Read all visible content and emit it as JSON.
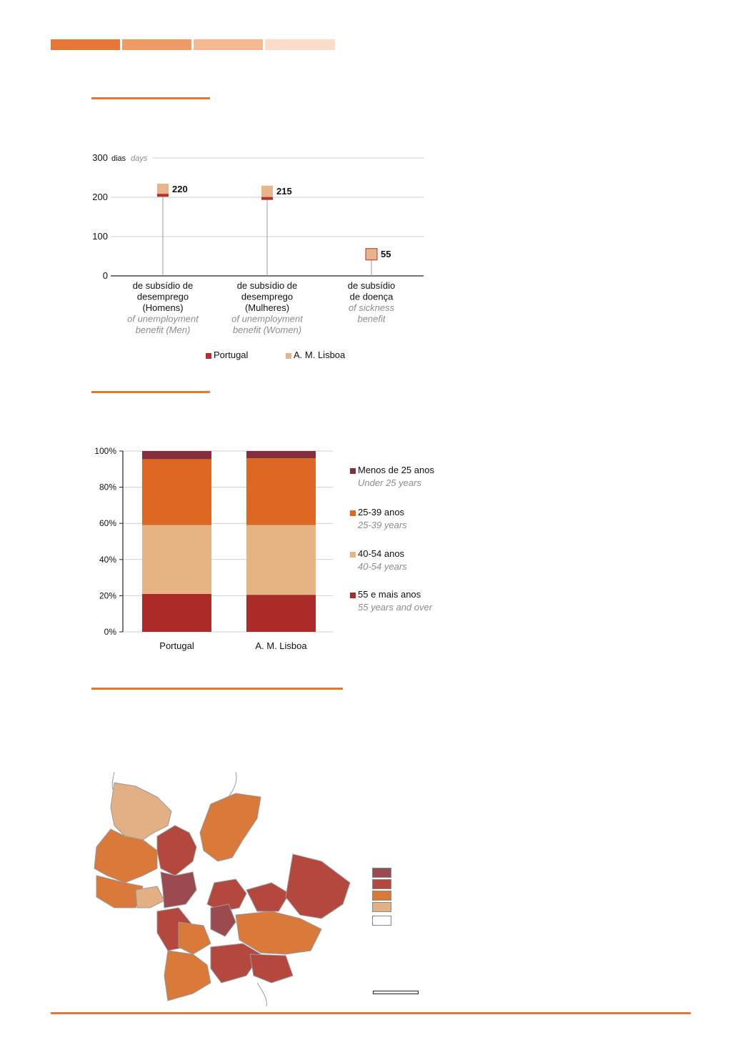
{
  "header_bar": {
    "colors": [
      "#e87636",
      "#f09a65",
      "#f5b892",
      "#fbdcc9"
    ]
  },
  "chart_data": [
    {
      "type": "scatter",
      "ytick_labels": [
        "300",
        "200",
        "100",
        "0"
      ],
      "yunit": "dias",
      "yunit_en": "days",
      "ylim": [
        0,
        300
      ],
      "categories": [
        {
          "pt": [
            "de subsídio de",
            "desemprego",
            "(Homens)"
          ],
          "en": [
            "of unemployment",
            "benefit (Men)"
          ]
        },
        {
          "pt": [
            "de subsídio de",
            "desemprego",
            "(Mulheres)"
          ],
          "en": [
            "of unemployment",
            "benefit (Women)"
          ]
        },
        {
          "pt": [
            "de subsídio",
            "de doença"
          ],
          "en": [
            "of sickness",
            "benefit"
          ]
        }
      ],
      "series": [
        {
          "name": "Portugal",
          "color": "#b5302a",
          "values": [
            205,
            197,
            54
          ]
        },
        {
          "name": "A. M. Lisboa",
          "color": "#e8b48a",
          "values": [
            220,
            215,
            55
          ]
        }
      ],
      "data_labels": [
        "220",
        "215",
        "55"
      ],
      "legend_position": "bottom",
      "grid": true
    },
    {
      "type": "bar",
      "stacked": true,
      "categories": [
        "Portugal",
        "A. M. Lisboa"
      ],
      "ytick_labels": [
        "100%",
        "80%",
        "60%",
        "40%",
        "20%",
        "0%"
      ],
      "ylim": [
        0,
        100
      ],
      "series": [
        {
          "name": "55 e mais anos",
          "name_en": "55 years and over",
          "color": "#ab2b28",
          "values": [
            21,
            20.5
          ]
        },
        {
          "name": "40-54 anos",
          "name_en": "40-54 years",
          "color": "#e6b483",
          "values": [
            38,
            38.5
          ]
        },
        {
          "name": "25-39 anos",
          "name_en": "25-39 years",
          "color": "#dd6824",
          "values": [
            36.5,
            37
          ]
        },
        {
          "name": "Menos de 25 anos",
          "name_en": "Under 25 years",
          "color": "#852f3c",
          "values": [
            4.5,
            4
          ]
        }
      ],
      "legend_position": "right",
      "grid": true
    }
  ],
  "map": {
    "legend_colors": [
      "#9b4a4f",
      "#b5483e",
      "#d97a3b",
      "#e3b085",
      "#ffffff"
    ]
  }
}
